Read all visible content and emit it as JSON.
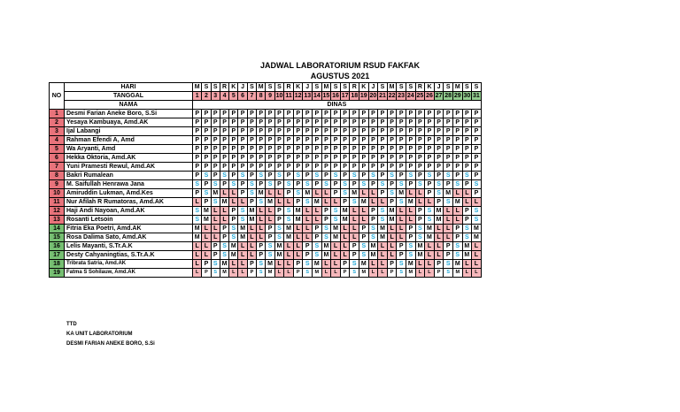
{
  "title": "JADWAL LABORATORIUM RSUD FAKFAK",
  "subtitle": "AGUSTUS 2021",
  "header": {
    "no_label": "NO",
    "hari_label": "HARI",
    "tanggal_label": "TANGGAL",
    "nama_label": "NAMA",
    "dinas_label": "DINAS"
  },
  "days": [
    "M",
    "S",
    "S",
    "R",
    "K",
    "J",
    "S",
    "M",
    "S",
    "S",
    "R",
    "K",
    "J",
    "S",
    "M",
    "S",
    "S",
    "R",
    "K",
    "J",
    "S",
    "M",
    "S",
    "S",
    "R",
    "K",
    "J",
    "S",
    "M",
    "S",
    "S"
  ],
  "dates": [
    "1",
    "2",
    "3",
    "4",
    "5",
    "6",
    "7",
    "8",
    "9",
    "10",
    "11",
    "12",
    "13",
    "14",
    "15",
    "16",
    "17",
    "18",
    "19",
    "20",
    "21",
    "22",
    "23",
    "24",
    "25",
    "26",
    "27",
    "28",
    "29",
    "30",
    "31"
  ],
  "date_colors": [
    "red",
    "red",
    "red",
    "red",
    "red",
    "red",
    "red",
    "red",
    "red",
    "red",
    "red",
    "red",
    "red",
    "red",
    "red",
    "red",
    "red",
    "red",
    "red",
    "red",
    "red",
    "red",
    "red",
    "red",
    "red",
    "red",
    "green",
    "green",
    "green",
    "green",
    "green"
  ],
  "staff": [
    {
      "no": "1",
      "name": "Desmi Farian Aneke Boro, S.Si",
      "shifts": "PPPPPPPPPPPPPPPPPPPPPPPPPPPPPPP"
    },
    {
      "no": "2",
      "name": "Yesaya Kambuaya, Amd.AK",
      "shifts": "PPPPPPPPPPPPPPPPPPPPPPPPPPPPPPP"
    },
    {
      "no": "3",
      "name": "Ijal Labangi",
      "shifts": "PPPPPPPPPPPPPPPPPPPPPPPPPPPPPPP"
    },
    {
      "no": "4",
      "name": "Rahman Efendi A, Amd",
      "shifts": "PPPPPPPPPPPPPPPPPPPPPPPPPPPPPPP"
    },
    {
      "no": "5",
      "name": "Wa Aryanti, Amd",
      "shifts": "PPPPPPPPPPPPPPPPPPPPPPPPPPPPPPP"
    },
    {
      "no": "6",
      "name": "Hekka Oktoria, Amd.AK",
      "shifts": "PPPPPPPPPPPPPPPPPPPPPPPPPPPPPPP"
    },
    {
      "no": "7",
      "name": "Yuni Pramesti Rewul, Amd.AK",
      "shifts": "PPPPPPPPPPPPPPPPPPPPPPPPPPPPPPP"
    },
    {
      "no": "8",
      "name": "Bakri Rumalean",
      "shifts": "PSPSPSPSPSPSPSPSPSPSPSPSPSPSPSP"
    },
    {
      "no": "9",
      "name": "M. Saifullah Henrawa Jana",
      "shifts": "SPSPSPSPSPSPSPSPSPSPSPSPSPSPSPS"
    },
    {
      "no": "10",
      "name": "Amiruddin Lukman, Amd.Kes",
      "shifts": "PSMLLPSMLLPSMLLPSMLLPSMLLPSMLLP"
    },
    {
      "no": "11",
      "name": "Nur Afilah R Rumatoras, Amd.AK",
      "shifts": "LPSMLLPSMLLPSMLLPSMLLPSMLLPSMLL"
    },
    {
      "no": "12",
      "name": "Haji Andi Nayoan, Amd.AK",
      "shifts": "SMLLPSMLLPSMLLPSMLLPSMLLPSMLLPS"
    },
    {
      "no": "13",
      "name": "Rosanti Letsoin",
      "shifts": "SMLLPSMLLPSMLLPSMLLPSMLLPSMLLPS"
    },
    {
      "no": "14",
      "name": "Fitria Eka Poetri, Amd.AK",
      "shifts": "MLLPSMLLPSMLLPSMLLPSMLLPSMLLPSM"
    },
    {
      "no": "15",
      "name": "Rosa Dalima Sato, Amd.AK",
      "shifts": "MLLPSMLLPSMLLPSMLLPSMLLPSMLLPSM"
    },
    {
      "no": "16",
      "name": "Lelis Mayanti, S.Tr.A.K",
      "shifts": "LLPSMLLPSMLLPSMLLPSMLLPSMLLPSML"
    },
    {
      "no": "17",
      "name": "Desty Cahyaningtias, S.Tr.A.K",
      "shifts": "LLPSMLLPSMLLPSMLLPSMLLPSMLLPSML"
    },
    {
      "no": "18",
      "name": "Tribrata Satria, Amd.AK",
      "shifts": "LPSMLLPSMLLPSMLLPSMLLPSMLLPSMLL"
    },
    {
      "no": "19",
      "name": "Fatma S Sohilauw, Amd.AK",
      "shifts": "LPSMLLPSMLLPSMLLPSMLLPSMLLPSMLL"
    }
  ],
  "footer": {
    "ttd": "TTD",
    "position": "KA UNIT LABORATORIUM",
    "signer": "DESMI FARIAN ANEKE BORO, S.Si"
  },
  "colors": {
    "header_red": "#f3a2a8",
    "header_green": "#93cd8f",
    "no_red": "#e8737b",
    "no_green": "#76bf72",
    "shift_l": "#f6b7bb",
    "shift_s_text": "#20a7d6"
  }
}
